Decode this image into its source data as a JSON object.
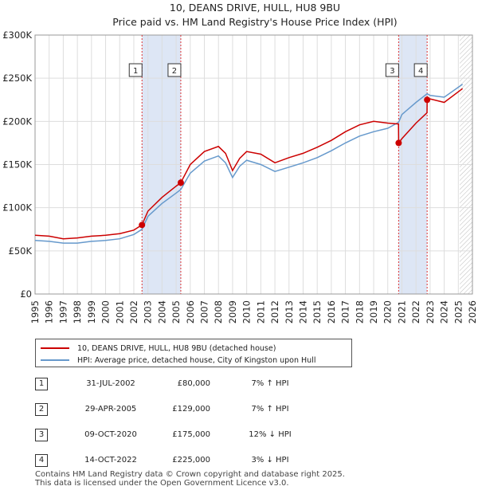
{
  "title_line1": "10, DEANS DRIVE, HULL, HU8 9BU",
  "title_line2": "Price paid vs. HM Land Registry's House Price Index (HPI)",
  "legend": [
    {
      "label": "10, DEANS DRIVE, HULL, HU8 9BU (detached house)",
      "color": "#cc0000"
    },
    {
      "label": "HPI: Average price, detached house, City of Kingston upon Hull",
      "color": "#6699cc"
    }
  ],
  "transactions": [
    {
      "num": "1",
      "date": "31-JUL-2002",
      "price": "£80,000",
      "hpi": "7% ↑ HPI"
    },
    {
      "num": "2",
      "date": "29-APR-2005",
      "price": "£129,000",
      "hpi": "7% ↑ HPI"
    },
    {
      "num": "3",
      "date": "09-OCT-2020",
      "price": "£175,000",
      "hpi": "12% ↓ HPI"
    },
    {
      "num": "4",
      "date": "14-OCT-2022",
      "price": "£225,000",
      "hpi": "3% ↓ HPI"
    }
  ],
  "footer_line1": "Contains HM Land Registry data © Crown copyright and database right 2025.",
  "footer_line2": "This data is licensed under the Open Government Licence v3.0.",
  "colors": {
    "property": "#cc0000",
    "hpi": "#6699cc",
    "shade": "#dde6f5",
    "marker_line": "#dd3333"
  },
  "chart_data": {
    "type": "line",
    "title": "10, DEANS DRIVE, HULL, HU8 9BU — Price paid vs. HM Land Registry's House Price Index (HPI)",
    "xlim": [
      1995,
      2026
    ],
    "ylim": [
      0,
      300000
    ],
    "x_ticks": [
      1995,
      1996,
      1997,
      1998,
      1999,
      2000,
      2001,
      2002,
      2003,
      2004,
      2005,
      2006,
      2007,
      2008,
      2009,
      2010,
      2011,
      2012,
      2013,
      2014,
      2015,
      2016,
      2017,
      2018,
      2019,
      2020,
      2021,
      2022,
      2023,
      2024,
      2025,
      2026
    ],
    "y_ticks": [
      {
        "value": 0,
        "label": "£0"
      },
      {
        "value": 50000,
        "label": "£50K"
      },
      {
        "value": 100000,
        "label": "£100K"
      },
      {
        "value": 150000,
        "label": "£150K"
      },
      {
        "value": 200000,
        "label": "£200K"
      },
      {
        "value": 250000,
        "label": "£250K"
      },
      {
        "value": 300000,
        "label": "£300K"
      }
    ],
    "shaded_ranges": [
      [
        2002.58,
        2005.33
      ],
      [
        2020.77,
        2022.79
      ]
    ],
    "forecast_from": 2025.1,
    "series": [
      {
        "name": "10, DEANS DRIVE, HULL, HU8 9BU (detached house)",
        "x": [
          1995,
          1996,
          1997,
          1998,
          1999,
          2000,
          2001,
          2002,
          2002.58,
          2003,
          2004,
          2005,
          2005.33,
          2006,
          2007,
          2008,
          2008.5,
          2009,
          2009.5,
          2010,
          2011,
          2012,
          2013,
          2014,
          2015,
          2016,
          2017,
          2018,
          2019,
          2020,
          2020.76,
          2020.77,
          2021,
          2022,
          2022.78,
          2022.79,
          2023,
          2024,
          2025.3
        ],
        "y": [
          68000,
          67000,
          64000,
          65000,
          67000,
          68000,
          70000,
          74000,
          80000,
          96000,
          112000,
          125000,
          129000,
          150000,
          165000,
          171000,
          163000,
          143000,
          157000,
          165000,
          162000,
          152000,
          158000,
          163000,
          170000,
          178000,
          188000,
          196000,
          200000,
          198000,
          197000,
          175000,
          180000,
          198000,
          210000,
          225000,
          226000,
          222000,
          238000
        ]
      },
      {
        "name": "HPI: Average price, detached house, City of Kingston upon Hull",
        "x": [
          1995,
          1996,
          1997,
          1998,
          1999,
          2000,
          2001,
          2002,
          2002.58,
          2003,
          2004,
          2005,
          2005.33,
          2006,
          2007,
          2008,
          2008.5,
          2009,
          2009.5,
          2010,
          2011,
          2012,
          2013,
          2014,
          2015,
          2016,
          2017,
          2018,
          2019,
          2020,
          2020.77,
          2021,
          2022,
          2022.79,
          2023,
          2024,
          2025.3
        ],
        "y": [
          62000,
          61000,
          59000,
          59000,
          61000,
          62000,
          64000,
          69000,
          75000,
          90000,
          105000,
          117000,
          121000,
          140000,
          154000,
          160000,
          152000,
          135000,
          148000,
          155000,
          150000,
          142000,
          147000,
          152000,
          158000,
          166000,
          175000,
          183000,
          188000,
          192000,
          199000,
          208000,
          222000,
          232000,
          230000,
          228000,
          243000
        ]
      }
    ],
    "sales": [
      {
        "num": "1",
        "x": 2002.58,
        "y": 80000
      },
      {
        "num": "2",
        "x": 2005.33,
        "y": 129000
      },
      {
        "num": "3",
        "x": 2020.77,
        "y": 175000
      },
      {
        "num": "4",
        "x": 2022.79,
        "y": 225000
      }
    ]
  }
}
